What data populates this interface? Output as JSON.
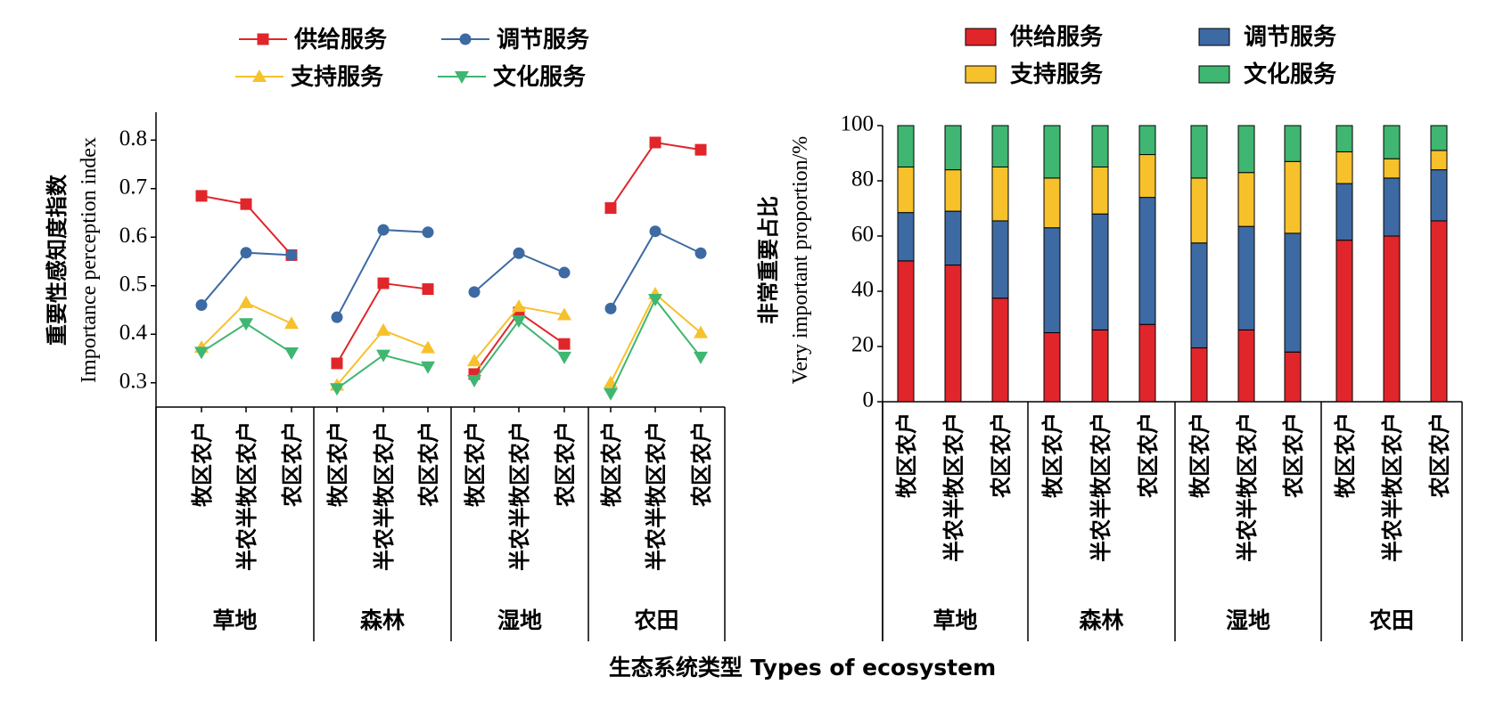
{
  "xlabel": "生态系统类型 Types of ecosystem",
  "chart_data": [
    {
      "type": "line",
      "ylabel_cn": "重要性感知度指数",
      "ylabel_en": "Importance perception index",
      "ylim": [
        0.25,
        0.85
      ],
      "yticks": [
        "0.3",
        "0.4",
        "0.5",
        "0.6",
        "0.7",
        "0.8"
      ],
      "groups": [
        "草地",
        "森林",
        "湿地",
        "农田"
      ],
      "categories": [
        "牧区农户",
        "半农半牧区农户",
        "农区农户"
      ],
      "legend": [
        "供给服务",
        "调节服务",
        "支持服务",
        "文化服务"
      ],
      "series": [
        {
          "name": "供给服务",
          "color": "#e0262b",
          "marker": "square",
          "values": [
            [
              0.685,
              0.668,
              0.563
            ],
            [
              0.34,
              0.505,
              0.493
            ],
            [
              0.318,
              0.445,
              0.38
            ],
            [
              0.66,
              0.795,
              0.78
            ]
          ]
        },
        {
          "name": "调节服务",
          "color": "#3d6aa3",
          "marker": "circle",
          "values": [
            [
              0.46,
              0.568,
              0.563
            ],
            [
              0.435,
              0.615,
              0.61
            ],
            [
              0.487,
              0.567,
              0.527
            ],
            [
              0.453,
              0.612,
              0.567
            ]
          ]
        },
        {
          "name": "支持服务",
          "color": "#f6c12b",
          "marker": "triangle-up",
          "values": [
            [
              0.373,
              0.465,
              0.422
            ],
            [
              0.295,
              0.408,
              0.372
            ],
            [
              0.345,
              0.457,
              0.44
            ],
            [
              0.3,
              0.483,
              0.403
            ]
          ]
        },
        {
          "name": "文化服务",
          "color": "#3fb671",
          "marker": "triangle-down",
          "values": [
            [
              0.363,
              0.422,
              0.362
            ],
            [
              0.288,
              0.357,
              0.333
            ],
            [
              0.305,
              0.428,
              0.353
            ],
            [
              0.278,
              0.472,
              0.353
            ]
          ]
        }
      ]
    },
    {
      "type": "bar",
      "stacked": true,
      "ylabel_cn": "非常重要占比",
      "ylabel_en": "Very important proportion/%",
      "ylim": [
        0,
        100
      ],
      "yticks": [
        "0",
        "20",
        "40",
        "60",
        "80",
        "100"
      ],
      "groups": [
        "草地",
        "森林",
        "湿地",
        "农田"
      ],
      "categories": [
        "牧区农户",
        "半农半牧区农户",
        "农区农户"
      ],
      "legend": [
        "供给服务",
        "调节服务",
        "支持服务",
        "文化服务"
      ],
      "series": [
        {
          "name": "供给服务",
          "color": "#e0262b",
          "values": [
            [
              51,
              49.5,
              37.5
            ],
            [
              25,
              26,
              28
            ],
            [
              19.5,
              26,
              18
            ],
            [
              58.5,
              60,
              65.5
            ]
          ]
        },
        {
          "name": "调节服务",
          "color": "#3d6aa3",
          "values": [
            [
              17.5,
              19.5,
              28
            ],
            [
              38,
              42,
              46
            ],
            [
              38,
              37.5,
              43
            ],
            [
              20.5,
              21,
              18.5
            ]
          ]
        },
        {
          "name": "支持服务",
          "color": "#f6c12b",
          "values": [
            [
              16.5,
              15,
              19.5
            ],
            [
              18,
              17,
              15.5
            ],
            [
              23.5,
              19.5,
              26
            ],
            [
              11.5,
              7,
              7
            ]
          ]
        },
        {
          "name": "文化服务",
          "color": "#3fb671",
          "values": [
            [
              15,
              16,
              15
            ],
            [
              19,
              15,
              10.5
            ],
            [
              19,
              17,
              13
            ],
            [
              9.5,
              12,
              9
            ]
          ]
        }
      ]
    }
  ]
}
